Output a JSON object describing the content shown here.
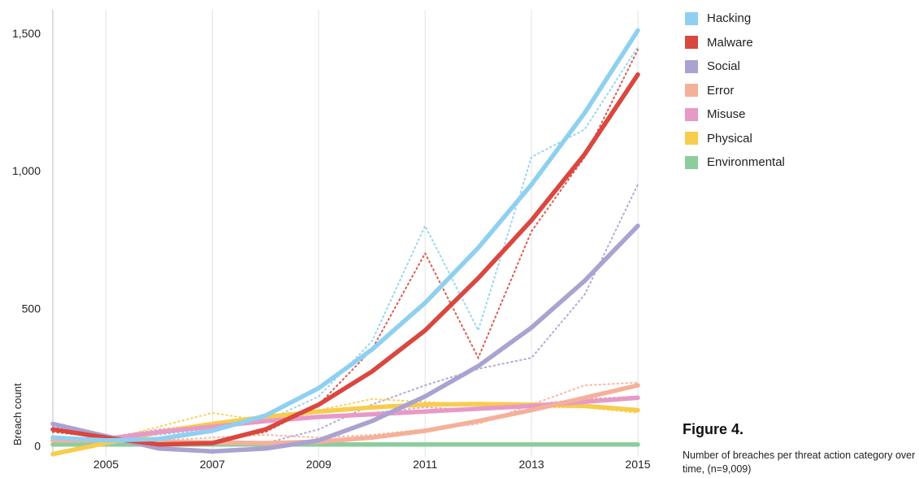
{
  "chart_data": {
    "type": "line",
    "title": "",
    "xlabel": "",
    "ylabel": "Breach count",
    "xlim": [
      2004,
      2015
    ],
    "ylim": [
      -40,
      1550
    ],
    "x_ticks": [
      2005,
      2007,
      2009,
      2011,
      2013,
      2015
    ],
    "x_tick_labels": [
      "2005",
      "2007",
      "2009",
      "2011",
      "2013",
      "2015"
    ],
    "y_ticks": [
      0,
      500,
      1000,
      1500
    ],
    "y_tick_labels": [
      "0",
      "500",
      "1,000",
      "1,500"
    ],
    "grid": "vertical",
    "legend_position": "right",
    "x": [
      2004,
      2005,
      2006,
      2007,
      2008,
      2009,
      2010,
      2011,
      2012,
      2013,
      2014,
      2015
    ],
    "series": [
      {
        "name": "Hacking",
        "color": "#8fd0f0",
        "trend": [
          30,
          20,
          25,
          55,
          110,
          210,
          350,
          520,
          720,
          950,
          1210,
          1510
        ],
        "actual": [
          25,
          30,
          40,
          60,
          90,
          180,
          380,
          800,
          420,
          1050,
          1150,
          1450
        ]
      },
      {
        "name": "Malware",
        "color": "#d9473f",
        "trend": [
          60,
          30,
          5,
          10,
          60,
          150,
          270,
          420,
          610,
          820,
          1060,
          1350
        ],
        "actual": [
          50,
          30,
          20,
          15,
          50,
          150,
          350,
          700,
          320,
          780,
          1050,
          1440
        ]
      },
      {
        "name": "Social",
        "color": "#aaa2d0",
        "trend": [
          80,
          35,
          -10,
          -20,
          -10,
          20,
          90,
          180,
          290,
          430,
          600,
          800
        ],
        "actual": [
          70,
          30,
          10,
          5,
          10,
          60,
          150,
          220,
          280,
          320,
          550,
          950
        ]
      },
      {
        "name": "Error",
        "color": "#f5b09a",
        "trend": [
          20,
          20,
          15,
          12,
          10,
          15,
          30,
          55,
          90,
          130,
          175,
          220
        ],
        "actual": [
          20,
          25,
          20,
          30,
          40,
          30,
          40,
          60,
          80,
          150,
          220,
          230
        ]
      },
      {
        "name": "Misuse",
        "color": "#e79ac7",
        "trend": [
          20,
          25,
          50,
          70,
          90,
          105,
          115,
          125,
          135,
          145,
          160,
          175
        ],
        "actual": [
          20,
          30,
          60,
          80,
          100,
          110,
          120,
          140,
          130,
          150,
          170,
          180
        ]
      },
      {
        "name": "Physical",
        "color": "#f8cc4c",
        "trend": [
          -30,
          10,
          50,
          80,
          105,
          125,
          140,
          150,
          152,
          150,
          145,
          130
        ],
        "actual": [
          -30,
          20,
          70,
          120,
          90,
          130,
          170,
          160,
          150,
          140,
          140,
          120
        ]
      },
      {
        "name": "Environmental",
        "color": "#8dcc9f",
        "trend": [
          5,
          5,
          5,
          5,
          5,
          5,
          5,
          5,
          5,
          5,
          5,
          5
        ],
        "actual": [
          5,
          5,
          5,
          5,
          5,
          5,
          5,
          5,
          5,
          5,
          5,
          5
        ]
      }
    ]
  },
  "figure": {
    "title": "Figure 4.",
    "caption": "Number of breaches per threat action category over time, (n=9,009)"
  }
}
